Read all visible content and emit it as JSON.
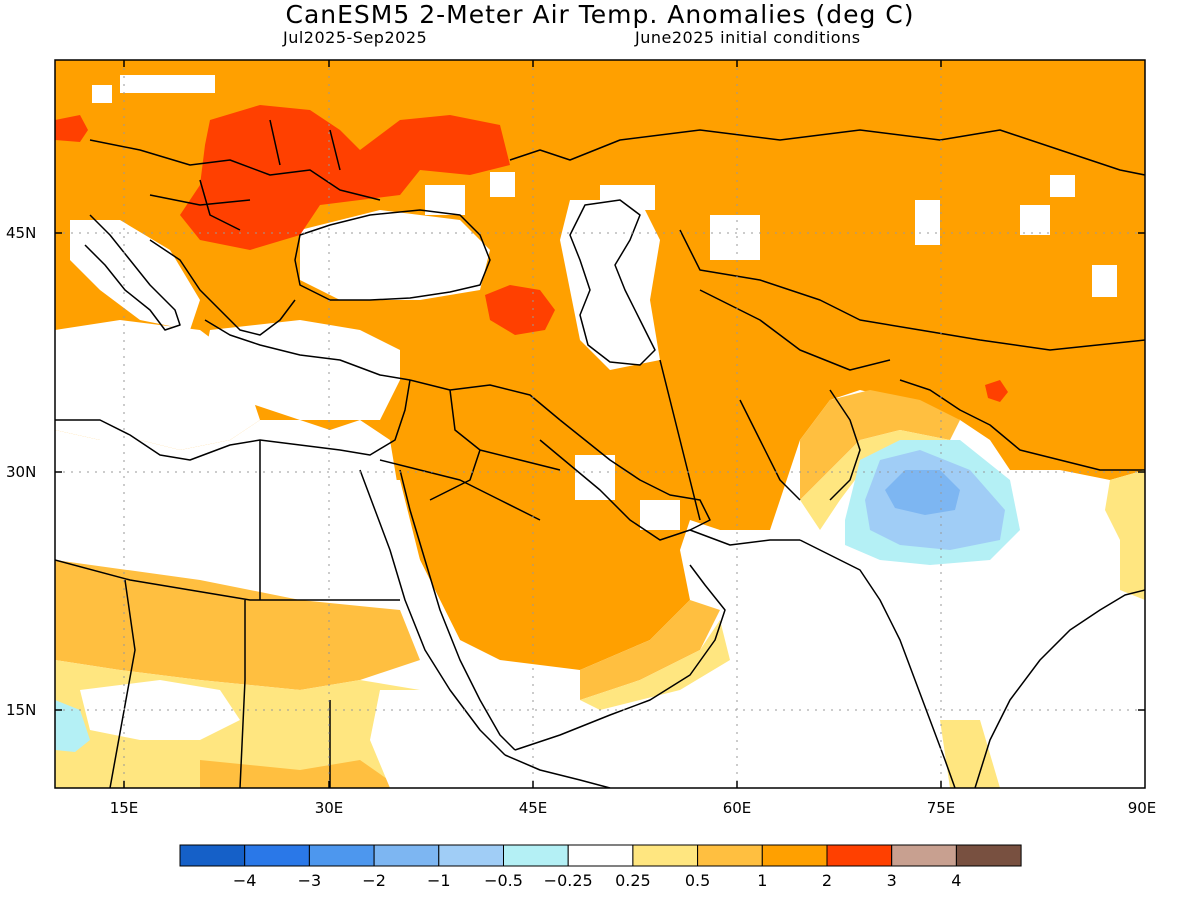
{
  "title": "CanESM5 2-Meter Air Temp. Anomalies (deg C)",
  "subtitle_left": "Jul2025-Sep2025",
  "subtitle_right": "June2025 initial conditions",
  "map": {
    "type": "filled-contour-anomaly-map",
    "lon_range": [
      9,
      90
    ],
    "lat_range": [
      10,
      56
    ],
    "lat_ticks": [
      "45N",
      "30N",
      "15N"
    ],
    "lon_ticks": [
      "15E",
      "30E",
      "45E",
      "60E",
      "75E",
      "90E"
    ],
    "grid": "dotted"
  },
  "colorbar": {
    "colors": [
      "#1560c8",
      "#2a78e8",
      "#4d97ee",
      "#7db6f2",
      "#a0cdf6",
      "#b4f0f5",
      "#ffffff",
      "#ffe680",
      "#ffbf40",
      "#ffa000",
      "#ff4000",
      "#c8a090",
      "#785040"
    ],
    "labels": [
      "−4",
      "−3",
      "−2",
      "−1",
      "−0.5",
      "−0.25",
      "0.25",
      "0.5",
      "1",
      "2",
      "3",
      "4"
    ]
  }
}
